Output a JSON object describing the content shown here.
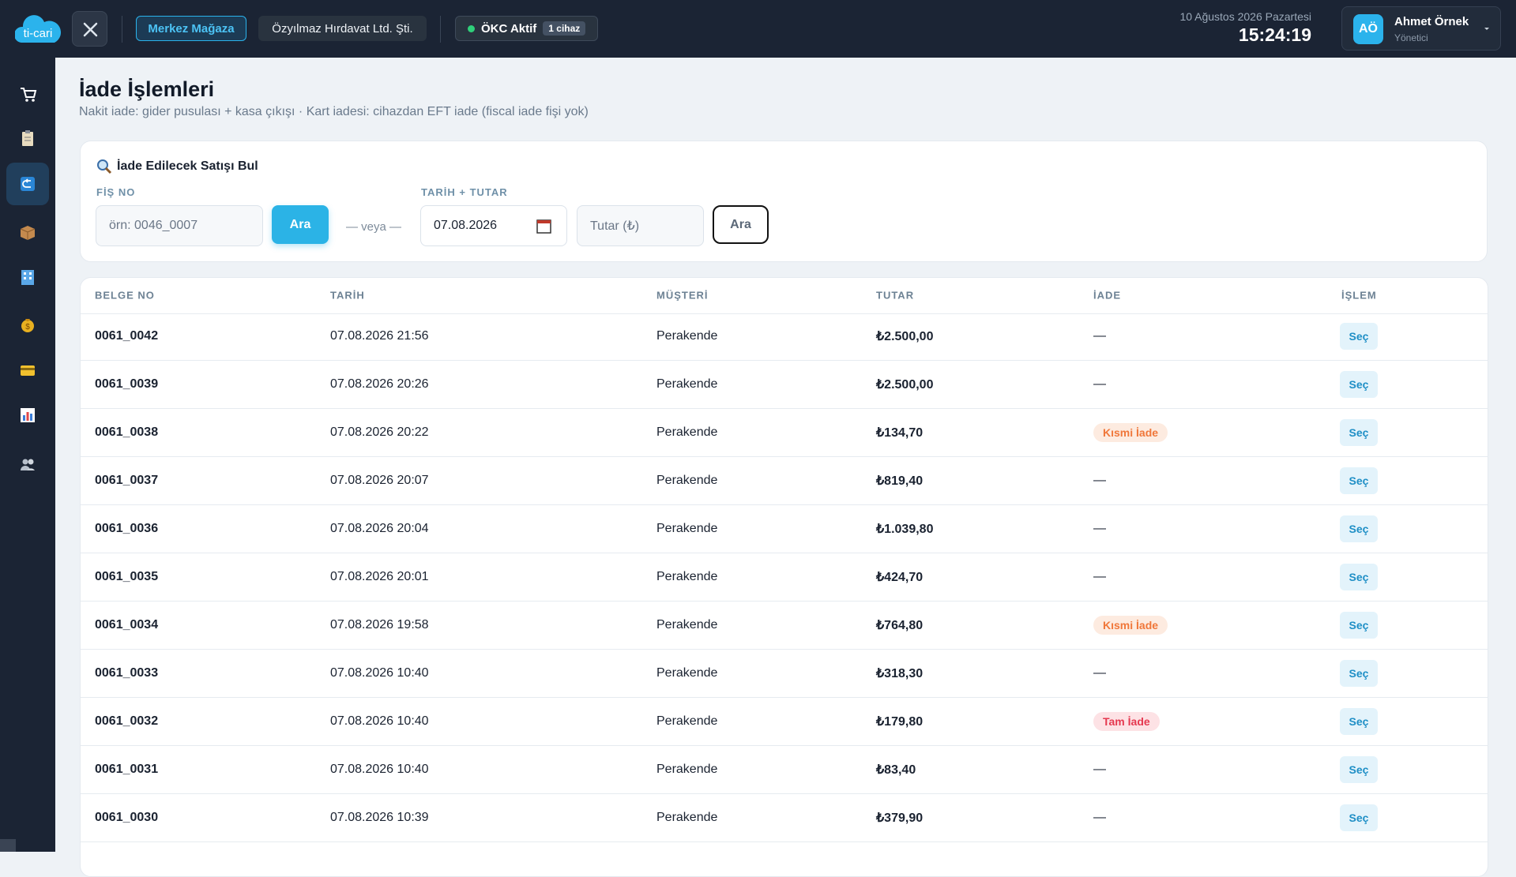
{
  "topbar": {
    "logo": "ti-cari",
    "store": "Merkez Mağaza",
    "company": "Özyılmaz Hırdavat Ltd. Şti.",
    "okc": "ÖKC Aktif",
    "okc_badge": "1 cihaz",
    "date": "10 Ağustos 2026 Pazartesi",
    "time": "15:24:19",
    "user_initials": "AÖ",
    "user_name": "Ahmet Örnek",
    "user_role": "Yönetici"
  },
  "page": {
    "title": "İade İşlemleri",
    "subtitle": "Nakit iade: gider pusulası + kasa çıkışı · Kart iadesi: cihazdan EFT iade (fiscal iade fişi yok)"
  },
  "search": {
    "title": "İade Edilecek Satışı Bul",
    "receipt_label": "FİŞ NO",
    "receipt_placeholder": "örn: 0046_0007",
    "receipt_button": "Ara",
    "or": "— veya —",
    "date_label": "TARİH + TUTAR",
    "date_value": "07.08.2026",
    "amount_placeholder": "Tutar (₺)",
    "date_button": "Ara"
  },
  "table": {
    "columns": [
      "BELGE NO",
      "TARİH",
      "MÜŞTERİ",
      "TUTAR",
      "İADE",
      "İŞLEM"
    ],
    "rows": [
      {
        "belge": "0061_0042",
        "tarih": "07.08.2026 21:56",
        "musteri": "Perakende",
        "tutar": "₺2.500,00",
        "iade": "—",
        "islem": "Seç"
      },
      {
        "belge": "0061_0039",
        "tarih": "07.08.2026 20:26",
        "musteri": "Perakende",
        "tutar": "₺2.500,00",
        "iade": "—",
        "islem": "Seç"
      },
      {
        "belge": "0061_0038",
        "tarih": "07.08.2026 20:22",
        "musteri": "Perakende",
        "tutar": "₺134,70",
        "iade": {
          "text": "Kısmi İade",
          "color": "#f0773a",
          "bg": "#fdebe0"
        },
        "islem": "Seç"
      },
      {
        "belge": "0061_0037",
        "tarih": "07.08.2026 20:07",
        "musteri": "Perakende",
        "tutar": "₺819,40",
        "iade": "—",
        "islem": "Seç"
      },
      {
        "belge": "0061_0036",
        "tarih": "07.08.2026 20:04",
        "musteri": "Perakende",
        "tutar": "₺1.039,80",
        "iade": "—",
        "islem": "Seç"
      },
      {
        "belge": "0061_0035",
        "tarih": "07.08.2026 20:01",
        "musteri": "Perakende",
        "tutar": "₺424,70",
        "iade": "—",
        "islem": "Seç"
      },
      {
        "belge": "0061_0034",
        "tarih": "07.08.2026 19:58",
        "musteri": "Perakende",
        "tutar": "₺764,80",
        "iade": {
          "text": "Kısmi İade",
          "color": "#f0773a",
          "bg": "#fdebe0"
        },
        "islem": "Seç"
      },
      {
        "belge": "0061_0033",
        "tarih": "07.08.2026 10:40",
        "musteri": "Perakende",
        "tutar": "₺318,30",
        "iade": "—",
        "islem": "Seç"
      },
      {
        "belge": "0061_0032",
        "tarih": "07.08.2026 10:40",
        "musteri": "Perakende",
        "tutar": "₺179,80",
        "iade": {
          "text": "Tam İade",
          "color": "#e53950",
          "bg": "#fde2e5"
        },
        "islem": "Seç"
      },
      {
        "belge": "0061_0031",
        "tarih": "07.08.2026 10:40",
        "musteri": "Perakende",
        "tutar": "₺83,40",
        "iade": "—",
        "islem": "Seç"
      },
      {
        "belge": "0061_0030",
        "tarih": "07.08.2026 10:39",
        "musteri": "Perakende",
        "tutar": "₺379,90",
        "iade": "—",
        "islem": "Seç"
      }
    ]
  }
}
